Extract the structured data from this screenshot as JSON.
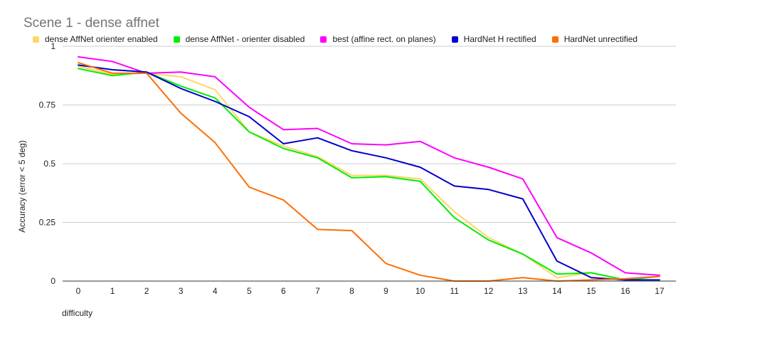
{
  "chart_data": {
    "type": "line",
    "title": "Scene 1 - dense affnet",
    "xlabel": "difficulty",
    "ylabel": "Accuracy (error < 5 deg)",
    "x": [
      0,
      1,
      2,
      3,
      4,
      5,
      6,
      7,
      8,
      9,
      10,
      11,
      12,
      13,
      14,
      15,
      16,
      17
    ],
    "ylim": [
      0,
      1
    ],
    "yticks": [
      0,
      0.25,
      0.5,
      0.75,
      1
    ],
    "ytick_labels": [
      "0",
      "0.25",
      "0.5",
      "0.75",
      "1"
    ],
    "grid": "horizontal",
    "legend_position": "top",
    "series": [
      {
        "name": "dense AffNet orienter enabled",
        "color": "#ffd666",
        "values": [
          0.915,
          0.88,
          0.885,
          0.87,
          0.815,
          0.635,
          0.575,
          0.53,
          0.45,
          0.45,
          0.435,
          0.295,
          0.185,
          0.115,
          0.015,
          0.035,
          0.005,
          0.02
        ]
      },
      {
        "name": "dense AffNet - orienter disabled",
        "color": "#00ee00",
        "values": [
          0.905,
          0.875,
          0.89,
          0.83,
          0.78,
          0.635,
          0.565,
          0.525,
          0.44,
          0.445,
          0.425,
          0.27,
          0.175,
          0.115,
          0.03,
          0.035,
          0.005,
          0.02
        ]
      },
      {
        "name": "best (affine rect. on planes)",
        "color": "#ff00ff",
        "values": [
          0.955,
          0.935,
          0.885,
          0.89,
          0.87,
          0.74,
          0.645,
          0.65,
          0.585,
          0.58,
          0.595,
          0.525,
          0.485,
          0.435,
          0.185,
          0.12,
          0.035,
          0.025
        ]
      },
      {
        "name": "HardNet H rectified",
        "color": "#0000cc",
        "values": [
          0.92,
          0.9,
          0.89,
          0.82,
          0.765,
          0.7,
          0.585,
          0.61,
          0.555,
          0.525,
          0.485,
          0.405,
          0.39,
          0.35,
          0.085,
          0.015,
          0.005,
          0.005
        ]
      },
      {
        "name": "HardNet unrectified",
        "color": "#ff6d00",
        "values": [
          0.93,
          0.885,
          0.885,
          0.715,
          0.59,
          0.4,
          0.345,
          0.22,
          0.215,
          0.075,
          0.025,
          0.0,
          0.0,
          0.015,
          0.0,
          0.005,
          0.01,
          0.02
        ]
      }
    ]
  }
}
